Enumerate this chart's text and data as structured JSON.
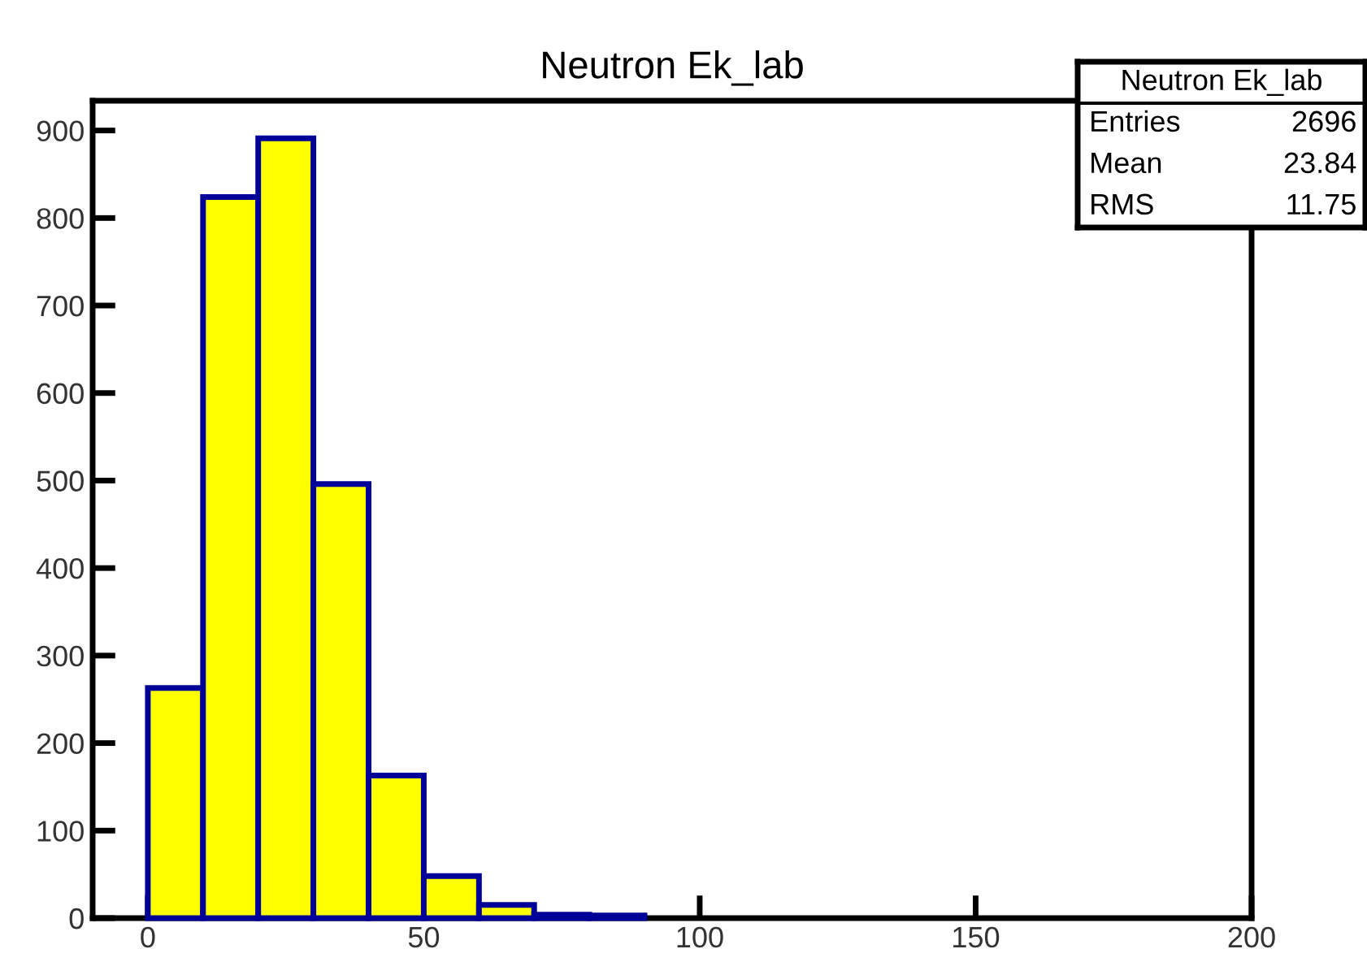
{
  "chart_data": {
    "type": "histogram",
    "title": "Neutron Ek_lab",
    "bins": [
      0,
      10,
      20,
      30,
      40,
      50,
      60,
      70,
      80,
      90
    ],
    "values": [
      263,
      824,
      891,
      496,
      163,
      48,
      15,
      4,
      3
    ],
    "color": "#ffff00",
    "xlim": [
      -10,
      200
    ],
    "xticks": [
      0,
      50,
      100,
      150,
      200
    ],
    "ylim": [
      0,
      934
    ],
    "yticks": [
      0,
      100,
      200,
      300,
      400,
      500,
      600,
      700,
      800,
      900
    ],
    "grid": false,
    "annotations": [
      "Neutron Ek_lab",
      "Entries",
      "2696",
      "Mean",
      "23.84",
      "RMS",
      "11.75"
    ]
  }
}
